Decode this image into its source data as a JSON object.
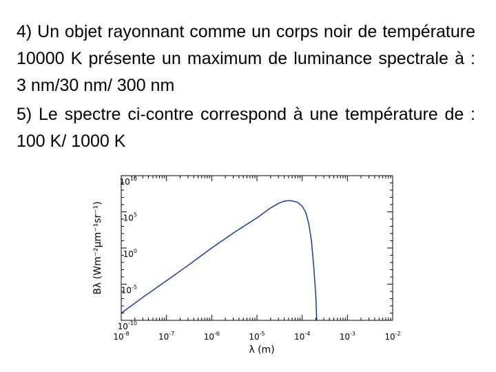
{
  "question4": "4) Un objet rayonnant comme un corps noir de température 10000 K présente un maximum de luminance spectrale à : 3 nm/30 nm/ 300 nm",
  "question5": "5) Le spectre ci-contre correspond à une température de : 100 K/ 1000 K",
  "chart_data": {
    "type": "line",
    "title": "",
    "xlabel": "λ (m)",
    "ylabel": "Bλ (Wm⁻²μm⁻¹sr⁻¹)",
    "x_scale": "log",
    "y_scale": "log",
    "xlim": [
      1e-08,
      0.01
    ],
    "ylim": [
      1e-10,
      10000000000.0
    ],
    "x_ticks": [
      {
        "base": "10",
        "exp": "-8",
        "value": 1e-08
      },
      {
        "base": "10",
        "exp": "-7",
        "value": 1e-07
      },
      {
        "base": "10",
        "exp": "-6",
        "value": 1e-06
      },
      {
        "base": "10",
        "exp": "-5",
        "value": 1e-05
      },
      {
        "base": "10",
        "exp": "-4",
        "value": 0.0001
      },
      {
        "base": "10",
        "exp": "-3",
        "value": 0.001
      },
      {
        "base": "10",
        "exp": "-2",
        "value": 0.01
      }
    ],
    "y_ticks": [
      {
        "base": "10",
        "exp": "10",
        "value": 10000000000.0
      },
      {
        "base": "10",
        "exp": "5",
        "value": 100000.0
      },
      {
        "base": "10",
        "exp": "0",
        "value": 1
      },
      {
        "base": "10",
        "exp": "-5",
        "value": 1e-05
      },
      {
        "base": "10",
        "exp": "-10",
        "value": 1e-10
      }
    ],
    "line_color": "#1a3a9c",
    "series": [
      {
        "x": [
          1e-08,
          3e-08,
          1e-07,
          3e-07,
          1e-06,
          3e-06,
          1e-05,
          2e-05,
          3e-05,
          4e-05,
          5e-05,
          6e-05,
          8e-05,
          0.0001,
          0.00012,
          0.00014,
          0.00016,
          0.00018,
          0.0002,
          0.00021
        ],
        "y": [
          1e-09,
          1.5e-07,
          3e-05,
          0.004,
          1.0,
          120.0,
          15000.0,
          350000.0,
          1500000.0,
          3000000.0,
          3500000.0,
          3300000.0,
          2000000.0,
          600000.0,
          80000.0,
          2000.0,
          10.0,
          0.003,
          3e-07,
          1e-10
        ]
      }
    ]
  }
}
